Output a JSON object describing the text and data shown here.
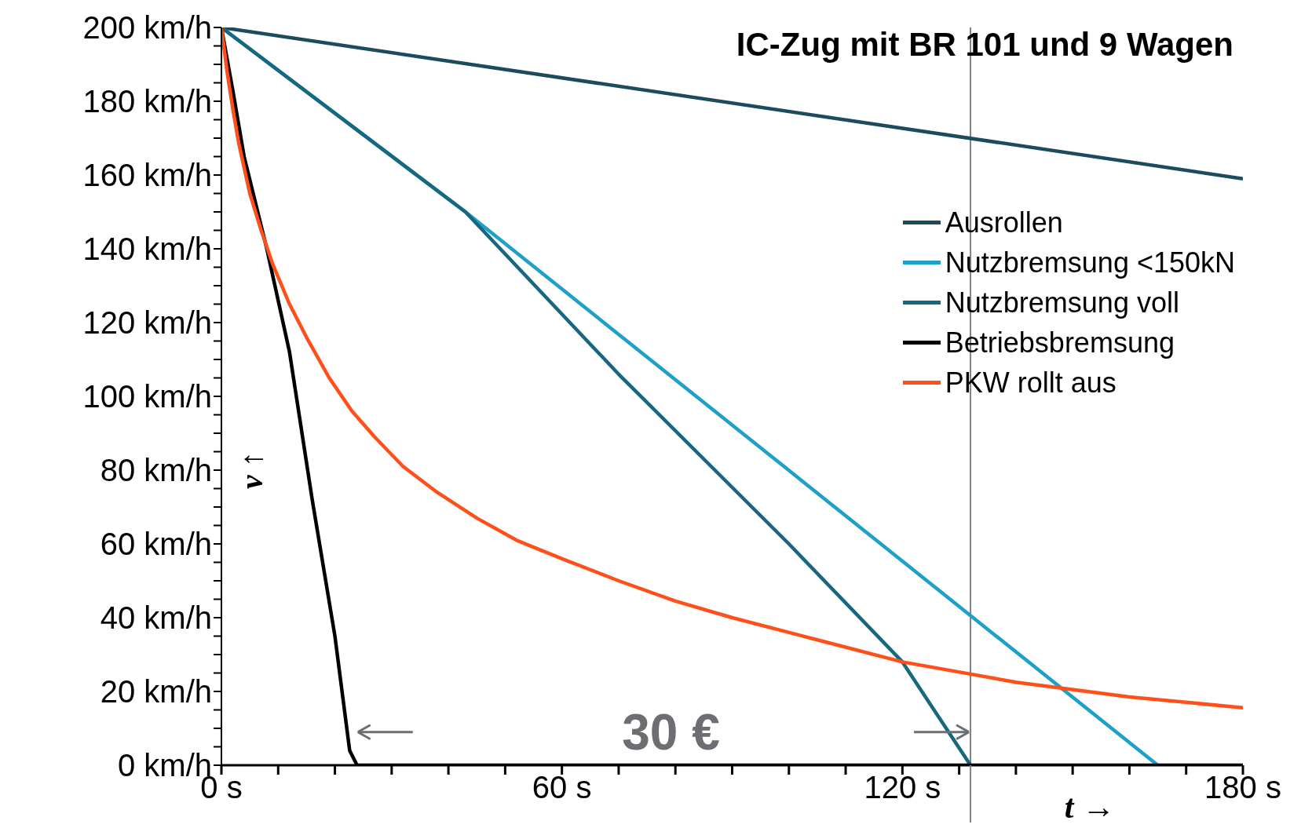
{
  "chart_data": {
    "type": "line",
    "title": "IC-Zug mit BR 101 und 9 Wagen",
    "xlabel": "t →",
    "ylabel": "v ↑",
    "xlim": [
      0,
      180
    ],
    "xticks": [
      {
        "value": 0,
        "label": "0 s"
      },
      {
        "value": 10,
        "label": null
      },
      {
        "value": 20,
        "label": null
      },
      {
        "value": 30,
        "label": null
      },
      {
        "value": 40,
        "label": null
      },
      {
        "value": 50,
        "label": null
      },
      {
        "value": 60,
        "label": "60 s"
      },
      {
        "value": 70,
        "label": null
      },
      {
        "value": 80,
        "label": null
      },
      {
        "value": 90,
        "label": null
      },
      {
        "value": 100,
        "label": null
      },
      {
        "value": 110,
        "label": null
      },
      {
        "value": 120,
        "label": "120 s"
      },
      {
        "value": 130,
        "label": null
      },
      {
        "value": 140,
        "label": null
      },
      {
        "value": 150,
        "label": null
      },
      {
        "value": 160,
        "label": null
      },
      {
        "value": 170,
        "label": null
      },
      {
        "value": 180,
        "label": "180 s"
      }
    ],
    "ylim": [
      0,
      200
    ],
    "yticks": [
      {
        "value": 0,
        "label": "0 km/h"
      },
      {
        "value": 5,
        "label": null
      },
      {
        "value": 10,
        "label": null
      },
      {
        "value": 15,
        "label": null
      },
      {
        "value": 20,
        "label": "20 km/h"
      },
      {
        "value": 25,
        "label": null
      },
      {
        "value": 30,
        "label": null
      },
      {
        "value": 35,
        "label": null
      },
      {
        "value": 40,
        "label": "40 km/h"
      },
      {
        "value": 45,
        "label": null
      },
      {
        "value": 50,
        "label": null
      },
      {
        "value": 55,
        "label": null
      },
      {
        "value": 60,
        "label": "60 km/h"
      },
      {
        "value": 65,
        "label": null
      },
      {
        "value": 70,
        "label": null
      },
      {
        "value": 75,
        "label": null
      },
      {
        "value": 80,
        "label": "80 km/h"
      },
      {
        "value": 85,
        "label": null
      },
      {
        "value": 90,
        "label": null
      },
      {
        "value": 95,
        "label": null
      },
      {
        "value": 100,
        "label": "100 km/h"
      },
      {
        "value": 105,
        "label": null
      },
      {
        "value": 110,
        "label": null
      },
      {
        "value": 115,
        "label": null
      },
      {
        "value": 120,
        "label": "120 km/h"
      },
      {
        "value": 125,
        "label": null
      },
      {
        "value": 130,
        "label": null
      },
      {
        "value": 135,
        "label": null
      },
      {
        "value": 140,
        "label": "140 km/h"
      },
      {
        "value": 145,
        "label": null
      },
      {
        "value": 150,
        "label": null
      },
      {
        "value": 155,
        "label": null
      },
      {
        "value": 160,
        "label": "160 km/h"
      },
      {
        "value": 165,
        "label": null
      },
      {
        "value": 170,
        "label": null
      },
      {
        "value": 175,
        "label": null
      },
      {
        "value": 180,
        "label": "180 km/h"
      },
      {
        "value": 185,
        "label": null
      },
      {
        "value": 190,
        "label": null
      },
      {
        "value": 195,
        "label": null
      },
      {
        "value": 200,
        "label": "200 km/h"
      }
    ],
    "grid": false,
    "legend": "right",
    "marker": "none",
    "line_style": "solid",
    "series": [
      {
        "name": "Ausrollen",
        "color": "#1d4a5c",
        "x": [
          0,
          180
        ],
        "values": [
          200,
          159
        ]
      },
      {
        "name": "Nutzbremsung <150kN",
        "color": "#1ea0c8",
        "x": [
          0,
          43,
          165
        ],
        "values": [
          200,
          150,
          0
        ]
      },
      {
        "name": "Nutzbremsung voll",
        "color": "#17677f",
        "x": [
          0,
          43,
          70,
          100,
          120,
          132
        ],
        "values": [
          200,
          150,
          106,
          60,
          28,
          0
        ]
      },
      {
        "name": "Betriebsbremsung",
        "color": "#000000",
        "x": [
          0,
          2,
          4,
          8,
          12,
          16,
          20,
          22.6,
          23.9,
          180
        ],
        "values": [
          200,
          183,
          165,
          140,
          112,
          72,
          35,
          4,
          0,
          0
        ]
      },
      {
        "name": "PKW rollt aus",
        "color": "#ff4f1a",
        "x": [
          0,
          1,
          2,
          3,
          5,
          7,
          9,
          12,
          15,
          19,
          23,
          27,
          32,
          38,
          45,
          52,
          60,
          70,
          80,
          90,
          105,
          120,
          140,
          160,
          180
        ],
        "values": [
          200,
          188,
          178,
          169,
          155,
          145,
          136,
          125,
          116,
          105,
          96,
          89,
          81,
          74,
          67,
          61,
          56,
          50,
          44.5,
          40,
          34,
          28,
          22.5,
          18.5,
          15.6
        ]
      }
    ],
    "ref_lines": [
      {
        "axis": "x",
        "value": 132,
        "label": null,
        "color": "#808080"
      }
    ],
    "annotations": [
      "30 €"
    ]
  }
}
